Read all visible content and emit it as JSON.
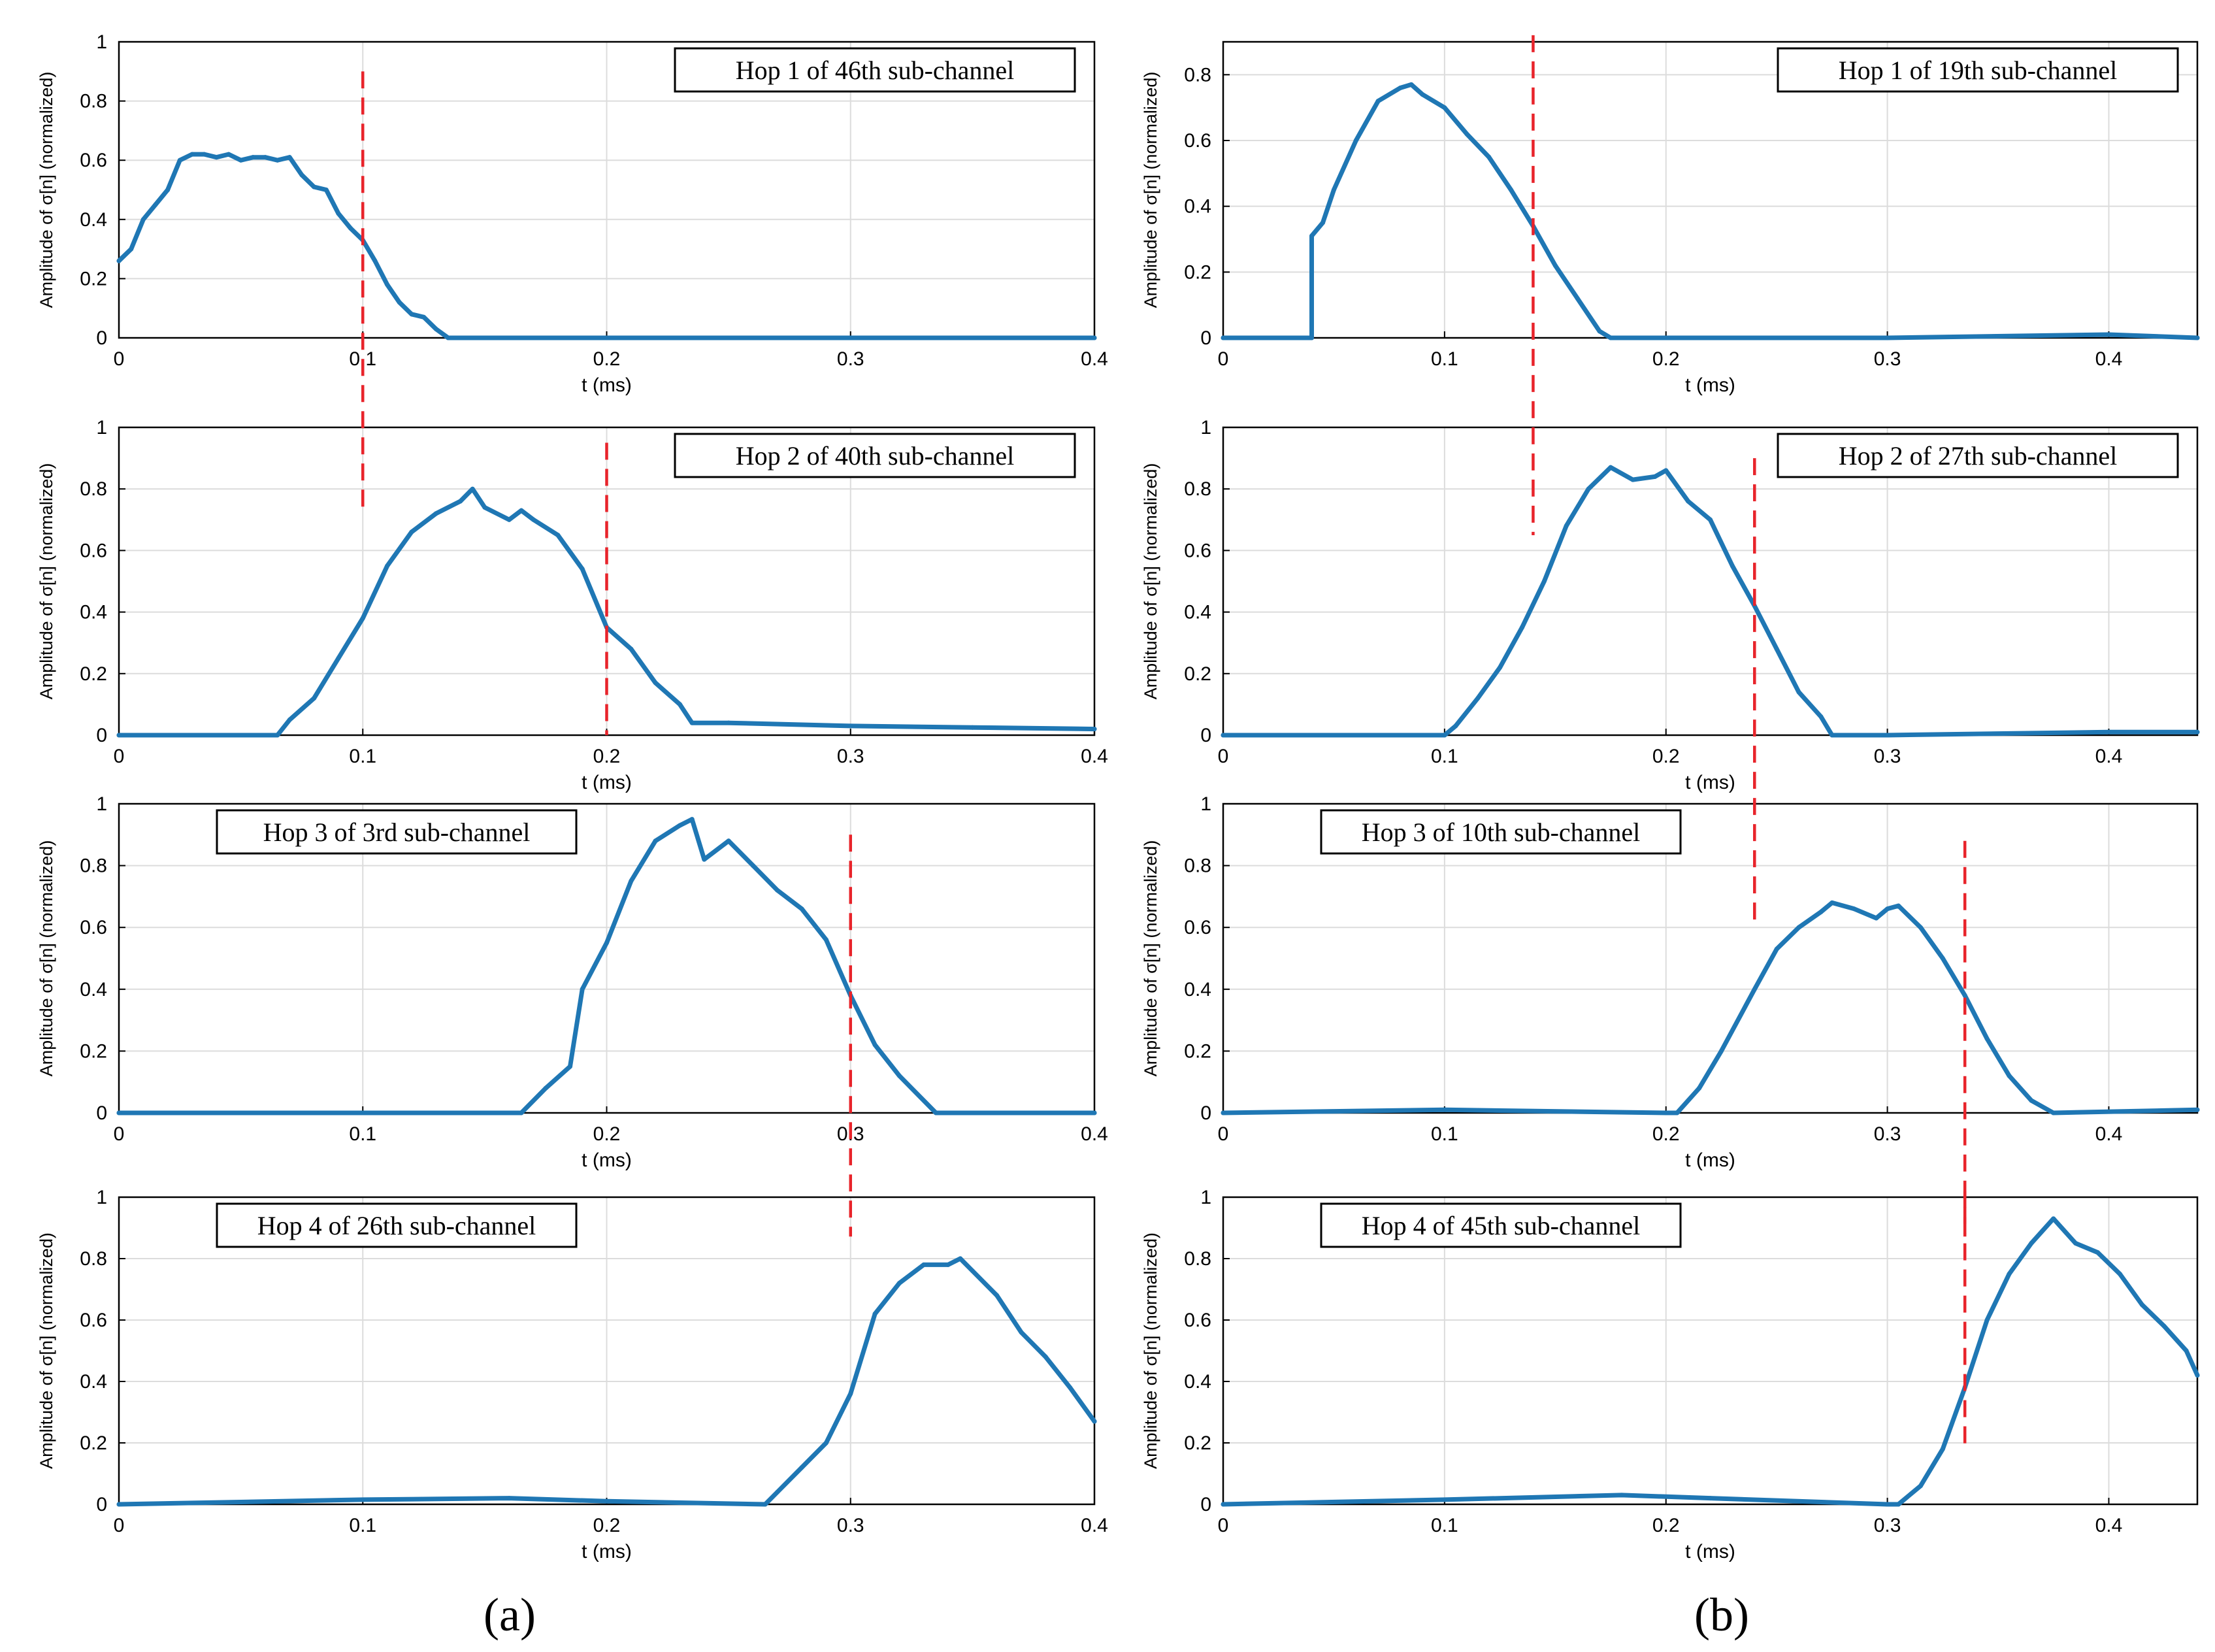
{
  "figure": {
    "panel_labels": [
      "(a)",
      "(b)"
    ],
    "colors": {
      "signal": "#1F77B4",
      "hop_boundary": "#E8242B",
      "grid": "#DCDCDC",
      "axis": "#000000"
    }
  },
  "chart_data": [
    {
      "type": "line",
      "panel": "a",
      "row": 1,
      "title": "Hop 1 of 46th sub-channel",
      "xlabel": "t (ms)",
      "ylabel": "Amplitude of σ[n] (normalized)",
      "xlim": [
        0,
        0.4
      ],
      "ylim": [
        0,
        1
      ],
      "xticks": [
        0,
        0.1,
        0.2,
        0.3,
        0.4
      ],
      "xtick_labels": [
        "0",
        "0.1",
        "0.2",
        "0.3",
        "0.4"
      ],
      "yticks": [
        0,
        0.2,
        0.4,
        0.6,
        0.8,
        1
      ],
      "ytick_labels": [
        "0",
        "0.2",
        "0.4",
        "0.6",
        "0.8",
        "1"
      ],
      "legend_position": "top-right",
      "grid": true,
      "series": [
        {
          "name": "amplitude",
          "x": [
            0,
            0.005,
            0.01,
            0.015,
            0.02,
            0.025,
            0.03,
            0.035,
            0.04,
            0.045,
            0.05,
            0.055,
            0.06,
            0.065,
            0.07,
            0.075,
            0.08,
            0.085,
            0.09,
            0.095,
            0.1,
            0.105,
            0.11,
            0.115,
            0.12,
            0.125,
            0.13,
            0.135,
            0.2,
            0.3,
            0.4
          ],
          "y": [
            0.26,
            0.3,
            0.4,
            0.45,
            0.5,
            0.6,
            0.62,
            0.62,
            0.61,
            0.62,
            0.6,
            0.61,
            0.61,
            0.6,
            0.61,
            0.55,
            0.51,
            0.5,
            0.42,
            0.37,
            0.33,
            0.26,
            0.18,
            0.12,
            0.08,
            0.07,
            0.03,
            0.0,
            0.0,
            0.0,
            0.0
          ]
        }
      ],
      "boundaries": [
        {
          "x": 0.1,
          "y": [
            -0.6,
            0.9
          ]
        }
      ]
    },
    {
      "type": "line",
      "panel": "a",
      "row": 2,
      "title": "Hop 2 of 40th sub-channel",
      "xlabel": "t (ms)",
      "ylabel": "Amplitude of σ[n] (normalized)",
      "xlim": [
        0,
        0.4
      ],
      "ylim": [
        0,
        1
      ],
      "xticks": [
        0,
        0.1,
        0.2,
        0.3,
        0.4
      ],
      "xtick_labels": [
        "0",
        "0.1",
        "0.2",
        "0.3",
        "0.4"
      ],
      "yticks": [
        0,
        0.2,
        0.4,
        0.6,
        0.8,
        1
      ],
      "ytick_labels": [
        "0",
        "0.2",
        "0.4",
        "0.6",
        "0.8",
        "1"
      ],
      "legend_position": "top-right",
      "grid": true,
      "series": [
        {
          "name": "amplitude",
          "x": [
            0,
            0.065,
            0.07,
            0.08,
            0.09,
            0.1,
            0.11,
            0.12,
            0.13,
            0.14,
            0.145,
            0.15,
            0.16,
            0.165,
            0.17,
            0.18,
            0.19,
            0.2,
            0.21,
            0.22,
            0.23,
            0.235,
            0.25,
            0.3,
            0.35,
            0.4
          ],
          "y": [
            0.0,
            0.0,
            0.05,
            0.12,
            0.25,
            0.38,
            0.55,
            0.66,
            0.72,
            0.76,
            0.8,
            0.74,
            0.7,
            0.73,
            0.7,
            0.65,
            0.54,
            0.35,
            0.28,
            0.17,
            0.1,
            0.04,
            0.04,
            0.03,
            0.025,
            0.02
          ]
        }
      ],
      "boundaries": [
        {
          "x": 0.2,
          "y": [
            0.0,
            0.95
          ]
        }
      ]
    },
    {
      "type": "line",
      "panel": "a",
      "row": 3,
      "title": "Hop 3 of 3rd sub-channel",
      "xlabel": "t (ms)",
      "ylabel": "Amplitude of σ[n] (normalized)",
      "xlim": [
        0,
        0.4
      ],
      "ylim": [
        0,
        1
      ],
      "xticks": [
        0,
        0.1,
        0.2,
        0.3,
        0.4
      ],
      "xtick_labels": [
        "0",
        "0.1",
        "0.2",
        "0.3",
        "0.4"
      ],
      "yticks": [
        0,
        0.2,
        0.4,
        0.6,
        0.8,
        1
      ],
      "ytick_labels": [
        "0",
        "0.2",
        "0.4",
        "0.6",
        "0.8",
        "1"
      ],
      "legend_position": "top-left",
      "grid": true,
      "series": [
        {
          "name": "amplitude",
          "x": [
            0,
            0.165,
            0.175,
            0.185,
            0.19,
            0.2,
            0.21,
            0.22,
            0.23,
            0.235,
            0.24,
            0.25,
            0.26,
            0.27,
            0.28,
            0.29,
            0.3,
            0.31,
            0.32,
            0.335,
            0.4
          ],
          "y": [
            0.0,
            0.0,
            0.08,
            0.15,
            0.4,
            0.55,
            0.75,
            0.88,
            0.93,
            0.95,
            0.82,
            0.88,
            0.8,
            0.72,
            0.66,
            0.56,
            0.38,
            0.22,
            0.12,
            0.0,
            0.0
          ]
        }
      ],
      "boundaries": [
        {
          "x": 0.3,
          "y": [
            -0.4,
            0.9
          ]
        }
      ]
    },
    {
      "type": "line",
      "panel": "a",
      "row": 4,
      "title": "Hop 4 of 26th sub-channel",
      "xlabel": "t (ms)",
      "ylabel": "Amplitude of σ[n] (normalized)",
      "xlim": [
        0,
        0.4
      ],
      "ylim": [
        0,
        1
      ],
      "xticks": [
        0,
        0.1,
        0.2,
        0.3,
        0.4
      ],
      "xtick_labels": [
        "0",
        "0.1",
        "0.2",
        "0.3",
        "0.4"
      ],
      "yticks": [
        0,
        0.2,
        0.4,
        0.6,
        0.8,
        1
      ],
      "ytick_labels": [
        "0",
        "0.2",
        "0.4",
        "0.6",
        "0.8",
        "1"
      ],
      "legend_position": "top-left",
      "grid": true,
      "series": [
        {
          "name": "amplitude",
          "x": [
            0,
            0.1,
            0.16,
            0.2,
            0.265,
            0.27,
            0.28,
            0.29,
            0.3,
            0.31,
            0.32,
            0.33,
            0.34,
            0.345,
            0.35,
            0.36,
            0.37,
            0.38,
            0.39,
            0.4
          ],
          "y": [
            0.0,
            0.015,
            0.02,
            0.01,
            0.0,
            0.04,
            0.12,
            0.2,
            0.36,
            0.62,
            0.72,
            0.78,
            0.78,
            0.8,
            0.76,
            0.68,
            0.56,
            0.48,
            0.38,
            0.27
          ]
        }
      ],
      "boundaries": []
    },
    {
      "type": "line",
      "panel": "b",
      "row": 1,
      "title": "Hop 1 of 19th sub-channel",
      "xlabel": "t (ms)",
      "ylabel": "Amplitude of σ[n] (normalized)",
      "xlim": [
        0,
        0.44
      ],
      "ylim": [
        0,
        0.9
      ],
      "xticks": [
        0,
        0.1,
        0.2,
        0.3,
        0.4
      ],
      "xtick_labels": [
        "0",
        "0.1",
        "0.2",
        "0.3",
        "0.4"
      ],
      "yticks": [
        0,
        0.2,
        0.4,
        0.6,
        0.8
      ],
      "ytick_labels": [
        "0",
        "0.2",
        "0.4",
        "0.6",
        "0.8"
      ],
      "legend_position": "top-right",
      "grid": true,
      "series": [
        {
          "name": "amplitude",
          "x": [
            0,
            0.04,
            0.04,
            0.045,
            0.05,
            0.06,
            0.07,
            0.08,
            0.085,
            0.09,
            0.1,
            0.11,
            0.12,
            0.13,
            0.14,
            0.15,
            0.16,
            0.17,
            0.175,
            0.3,
            0.4,
            0.44
          ],
          "y": [
            0.0,
            0.0,
            0.31,
            0.35,
            0.45,
            0.6,
            0.72,
            0.76,
            0.77,
            0.74,
            0.7,
            0.62,
            0.55,
            0.45,
            0.34,
            0.22,
            0.12,
            0.02,
            0.0,
            0.0,
            0.01,
            0.0
          ]
        }
      ],
      "boundaries": [
        {
          "x": 0.14,
          "y": [
            -0.6,
            0.92
          ]
        }
      ]
    },
    {
      "type": "line",
      "panel": "b",
      "row": 2,
      "title": "Hop 2 of 27th sub-channel",
      "xlabel": "t (ms)",
      "ylabel": "Amplitude of σ[n] (normalized)",
      "xlim": [
        0,
        0.44
      ],
      "ylim": [
        0,
        1
      ],
      "xticks": [
        0,
        0.1,
        0.2,
        0.3,
        0.4
      ],
      "xtick_labels": [
        "0",
        "0.1",
        "0.2",
        "0.3",
        "0.4"
      ],
      "yticks": [
        0,
        0.2,
        0.4,
        0.6,
        0.8,
        1
      ],
      "ytick_labels": [
        "0",
        "0.2",
        "0.4",
        "0.6",
        "0.8",
        "1"
      ],
      "legend_position": "top-right",
      "grid": true,
      "series": [
        {
          "name": "amplitude",
          "x": [
            0,
            0.1,
            0.105,
            0.115,
            0.125,
            0.135,
            0.145,
            0.155,
            0.165,
            0.175,
            0.185,
            0.195,
            0.2,
            0.21,
            0.22,
            0.23,
            0.24,
            0.25,
            0.26,
            0.27,
            0.275,
            0.3,
            0.4,
            0.44
          ],
          "y": [
            0.0,
            0.0,
            0.03,
            0.12,
            0.22,
            0.35,
            0.5,
            0.68,
            0.8,
            0.87,
            0.83,
            0.84,
            0.86,
            0.76,
            0.7,
            0.55,
            0.42,
            0.28,
            0.14,
            0.06,
            0.0,
            0.0,
            0.01,
            0.01
          ]
        }
      ],
      "boundaries": [
        {
          "x": 0.24,
          "y": [
            -0.6,
            0.9
          ]
        }
      ]
    },
    {
      "type": "line",
      "panel": "b",
      "row": 3,
      "title": "Hop 3 of 10th sub-channel",
      "xlabel": "t (ms)",
      "ylabel": "Amplitude of σ[n] (normalized)",
      "xlim": [
        0,
        0.44
      ],
      "ylim": [
        0,
        1
      ],
      "xticks": [
        0,
        0.1,
        0.2,
        0.3,
        0.4
      ],
      "xtick_labels": [
        "0",
        "0.1",
        "0.2",
        "0.3",
        "0.4"
      ],
      "yticks": [
        0,
        0.2,
        0.4,
        0.6,
        0.8,
        1
      ],
      "ytick_labels": [
        "0",
        "0.2",
        "0.4",
        "0.6",
        "0.8",
        "1"
      ],
      "legend_position": "top-left",
      "grid": true,
      "series": [
        {
          "name": "amplitude",
          "x": [
            0,
            0.1,
            0.2,
            0.205,
            0.215,
            0.225,
            0.24,
            0.25,
            0.26,
            0.27,
            0.275,
            0.285,
            0.295,
            0.3,
            0.305,
            0.315,
            0.325,
            0.335,
            0.345,
            0.355,
            0.365,
            0.375,
            0.44
          ],
          "y": [
            0.0,
            0.01,
            0.0,
            0.0,
            0.08,
            0.2,
            0.4,
            0.53,
            0.6,
            0.65,
            0.68,
            0.66,
            0.63,
            0.66,
            0.67,
            0.6,
            0.5,
            0.38,
            0.24,
            0.12,
            0.04,
            0.0,
            0.01
          ]
        }
      ],
      "boundaries": [
        {
          "x": 0.335,
          "y": [
            -0.4,
            0.88
          ]
        }
      ]
    },
    {
      "type": "line",
      "panel": "b",
      "row": 4,
      "title": "Hop 4 of 45th sub-channel",
      "xlabel": "t (ms)",
      "ylabel": "Amplitude of σ[n] (normalized)",
      "xlim": [
        0,
        0.44
      ],
      "ylim": [
        0,
        1
      ],
      "xticks": [
        0,
        0.1,
        0.2,
        0.3,
        0.4
      ],
      "xtick_labels": [
        "0",
        "0.1",
        "0.2",
        "0.3",
        "0.4"
      ],
      "yticks": [
        0,
        0.2,
        0.4,
        0.6,
        0.8,
        1
      ],
      "ytick_labels": [
        "0",
        "0.2",
        "0.4",
        "0.6",
        "0.8",
        "1"
      ],
      "legend_position": "top-left",
      "grid": true,
      "series": [
        {
          "name": "amplitude",
          "x": [
            0,
            0.1,
            0.18,
            0.22,
            0.3,
            0.305,
            0.315,
            0.325,
            0.335,
            0.345,
            0.355,
            0.365,
            0.375,
            0.385,
            0.395,
            0.405,
            0.415,
            0.425,
            0.435,
            0.44
          ],
          "y": [
            0.0,
            0.015,
            0.03,
            0.02,
            0.0,
            0.0,
            0.06,
            0.18,
            0.38,
            0.6,
            0.75,
            0.85,
            0.93,
            0.85,
            0.82,
            0.75,
            0.65,
            0.58,
            0.5,
            0.42
          ]
        }
      ],
      "boundaries": [
        {
          "x": 0.335,
          "y": [
            0.18,
            1.02
          ]
        }
      ]
    }
  ]
}
